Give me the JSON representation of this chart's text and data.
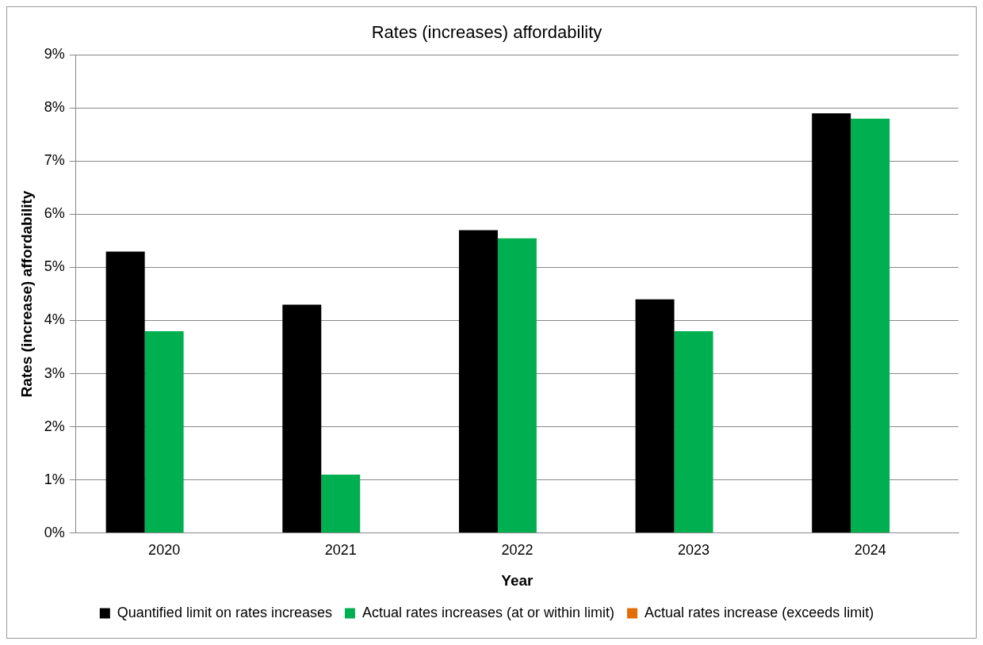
{
  "chart_data": {
    "type": "bar",
    "title": "Rates (increases) affordability",
    "xlabel": "Year",
    "ylabel": "Rates (increase) affordability",
    "categories": [
      "2020",
      "2021",
      "2022",
      "2023",
      "2024"
    ],
    "series": [
      {
        "name": "Quantified limit on rates increases",
        "color": "#000000",
        "values": [
          5.3,
          4.3,
          5.7,
          4.4,
          7.9
        ]
      },
      {
        "name": "Actual rates increases (at or within limit)",
        "color": "#00b050",
        "values": [
          3.8,
          1.1,
          5.55,
          3.8,
          7.8
        ]
      },
      {
        "name": "Actual rates increase (exceeds limit)",
        "color": "#e36c09",
        "values": [
          null,
          null,
          null,
          null,
          null
        ]
      }
    ],
    "ylim": [
      0,
      9
    ],
    "yticks": [
      {
        "value": 0,
        "label": "0%"
      },
      {
        "value": 1,
        "label": "1%"
      },
      {
        "value": 2,
        "label": "2%"
      },
      {
        "value": 3,
        "label": "3%"
      },
      {
        "value": 4,
        "label": "4%"
      },
      {
        "value": 5,
        "label": "5%"
      },
      {
        "value": 6,
        "label": "6%"
      },
      {
        "value": 7,
        "label": "7%"
      },
      {
        "value": 8,
        "label": "8%"
      },
      {
        "value": 9,
        "label": "9%"
      }
    ],
    "grid": "y",
    "legend": "bottom"
  }
}
